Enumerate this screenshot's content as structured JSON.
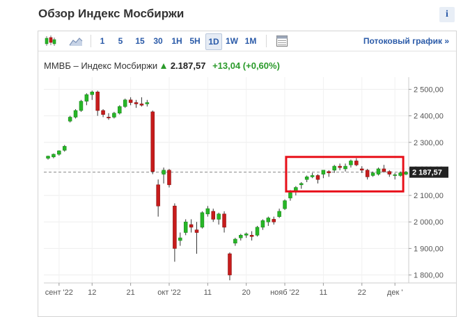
{
  "header": {
    "title": "Обзор Индекс Мосбиржи",
    "info_label": "i"
  },
  "toolbar": {
    "periods": [
      "1",
      "5",
      "15",
      "30",
      "1H",
      "5H",
      "1D",
      "1W",
      "1M"
    ],
    "active_period": "1D",
    "stream_link": "Потоковый график »"
  },
  "quote": {
    "name": "ММВБ – Индекс Мосбиржи",
    "price": "2.187,57",
    "change": "+13,04 (+0,60%)"
  },
  "colors": {
    "up": "#27b627",
    "down": "#c71c1c",
    "highlight": "#e8101a",
    "link": "#2a5aa8"
  },
  "chart_data": {
    "type": "candlestick",
    "y_ticks": [
      "2 500,00",
      "2 400,00",
      "2 300,00",
      "2 200,00",
      "2 100,00",
      "2 000,00",
      "1 900,00",
      "1 800,00"
    ],
    "y_tick_values": [
      2500,
      2400,
      2300,
      2200,
      2100,
      2000,
      1900,
      1800
    ],
    "ylim": [
      1770,
      2530
    ],
    "x_tick_labels": [
      "сент '22",
      "12",
      "21",
      "окт '22",
      "11",
      "20",
      "нояб '22",
      "11",
      "22",
      "дек '"
    ],
    "x_tick_index": [
      2,
      8,
      15,
      22,
      29,
      36,
      43,
      50,
      57,
      63
    ],
    "last_price": 2187.57,
    "last_price_label": "2 187,57",
    "highlight_range": {
      "from_index": 44,
      "to_index": 64,
      "y_low": 2115,
      "y_high": 2245
    },
    "candles": [
      [
        2240,
        2250,
        2235,
        2248
      ],
      [
        2245,
        2258,
        2240,
        2255
      ],
      [
        2255,
        2270,
        2250,
        2268
      ],
      [
        2270,
        2290,
        2265,
        2285
      ],
      [
        2380,
        2400,
        2375,
        2395
      ],
      [
        2395,
        2425,
        2390,
        2420
      ],
      [
        2420,
        2460,
        2415,
        2455
      ],
      [
        2455,
        2485,
        2440,
        2480
      ],
      [
        2480,
        2495,
        2460,
        2490
      ],
      [
        2490,
        2495,
        2400,
        2420
      ],
      [
        2420,
        2425,
        2395,
        2405
      ],
      [
        2395,
        2410,
        2385,
        2392
      ],
      [
        2395,
        2415,
        2390,
        2410
      ],
      [
        2410,
        2440,
        2405,
        2435
      ],
      [
        2435,
        2465,
        2430,
        2460
      ],
      [
        2460,
        2470,
        2440,
        2450
      ],
      [
        2450,
        2460,
        2430,
        2445
      ],
      [
        2445,
        2470,
        2435,
        2440
      ],
      [
        2445,
        2460,
        2435,
        2450
      ],
      [
        2415,
        2420,
        2180,
        2190
      ],
      [
        2140,
        2160,
        2020,
        2060
      ],
      [
        2180,
        2205,
        2145,
        2195
      ],
      [
        2195,
        2200,
        2130,
        2140
      ],
      [
        2060,
        2070,
        1850,
        1900
      ],
      [
        1930,
        1960,
        1910,
        1940
      ],
      [
        1960,
        2010,
        1950,
        2000
      ],
      [
        1990,
        2010,
        1960,
        1980
      ],
      [
        1970,
        2000,
        1880,
        1960
      ],
      [
        1980,
        2040,
        1975,
        2035
      ],
      [
        2030,
        2060,
        2020,
        2050
      ],
      [
        2040,
        2050,
        2000,
        2010
      ],
      [
        2010,
        2035,
        1990,
        2030
      ],
      [
        2030,
        2040,
        1960,
        1980
      ],
      [
        1880,
        1885,
        1780,
        1800
      ],
      [
        1920,
        1940,
        1910,
        1935
      ],
      [
        1940,
        1955,
        1930,
        1950
      ],
      [
        1950,
        1960,
        1940,
        1955
      ],
      [
        1950,
        1965,
        1930,
        1945
      ],
      [
        1950,
        1985,
        1945,
        1980
      ],
      [
        1980,
        2010,
        1970,
        2005
      ],
      [
        2000,
        2020,
        1985,
        2015
      ],
      [
        2010,
        2020,
        1990,
        2000
      ],
      [
        2020,
        2050,
        2015,
        2040
      ],
      [
        2050,
        2085,
        2045,
        2080
      ],
      [
        2090,
        2120,
        2080,
        2110
      ],
      [
        2115,
        2135,
        2100,
        2130
      ],
      [
        2140,
        2150,
        2125,
        2145
      ],
      [
        2160,
        2175,
        2150,
        2170
      ],
      [
        2170,
        2185,
        2165,
        2175
      ],
      [
        2175,
        2180,
        2145,
        2160
      ],
      [
        2180,
        2195,
        2165,
        2195
      ],
      [
        2190,
        2195,
        2170,
        2185
      ],
      [
        2195,
        2215,
        2185,
        2210
      ],
      [
        2210,
        2220,
        2195,
        2205
      ],
      [
        2200,
        2220,
        2190,
        2210
      ],
      [
        2215,
        2235,
        2205,
        2230
      ],
      [
        2230,
        2240,
        2210,
        2215
      ],
      [
        2200,
        2210,
        2185,
        2195
      ],
      [
        2195,
        2200,
        2160,
        2170
      ],
      [
        2175,
        2190,
        2170,
        2185
      ],
      [
        2180,
        2205,
        2175,
        2200
      ],
      [
        2200,
        2215,
        2185,
        2190
      ],
      [
        2190,
        2195,
        2170,
        2180
      ],
      [
        2175,
        2185,
        2160,
        2178
      ],
      [
        2175,
        2190,
        2170,
        2185
      ],
      [
        2180,
        2192,
        2176,
        2187.57
      ]
    ]
  }
}
